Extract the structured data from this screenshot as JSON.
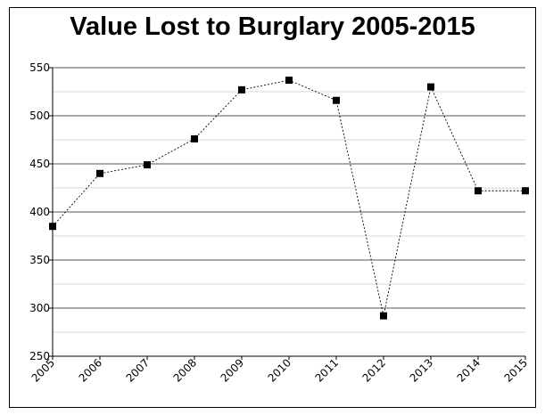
{
  "chart_data": {
    "type": "line",
    "title": "Value Lost to Burglary 2005-2015",
    "xlabel": "",
    "ylabel": "",
    "x": [
      "2005",
      "2006",
      "2007",
      "2008",
      "2009",
      "2010",
      "2011",
      "2012",
      "2013",
      "2014",
      "2015"
    ],
    "series": [
      {
        "values": [
          385,
          440,
          449,
          476,
          527,
          537,
          516,
          292,
          530,
          422,
          422
        ]
      }
    ],
    "ylim": [
      250,
      550
    ],
    "yticks": [
      "250",
      "300",
      "350",
      "400",
      "450",
      "500",
      "550"
    ],
    "grid": true,
    "marker": "square",
    "line_style": "dotted",
    "colors": {
      "line": "#000000",
      "marker": "#000000",
      "major_grid": "#555555",
      "minor_grid": "#d8d8d8"
    }
  }
}
